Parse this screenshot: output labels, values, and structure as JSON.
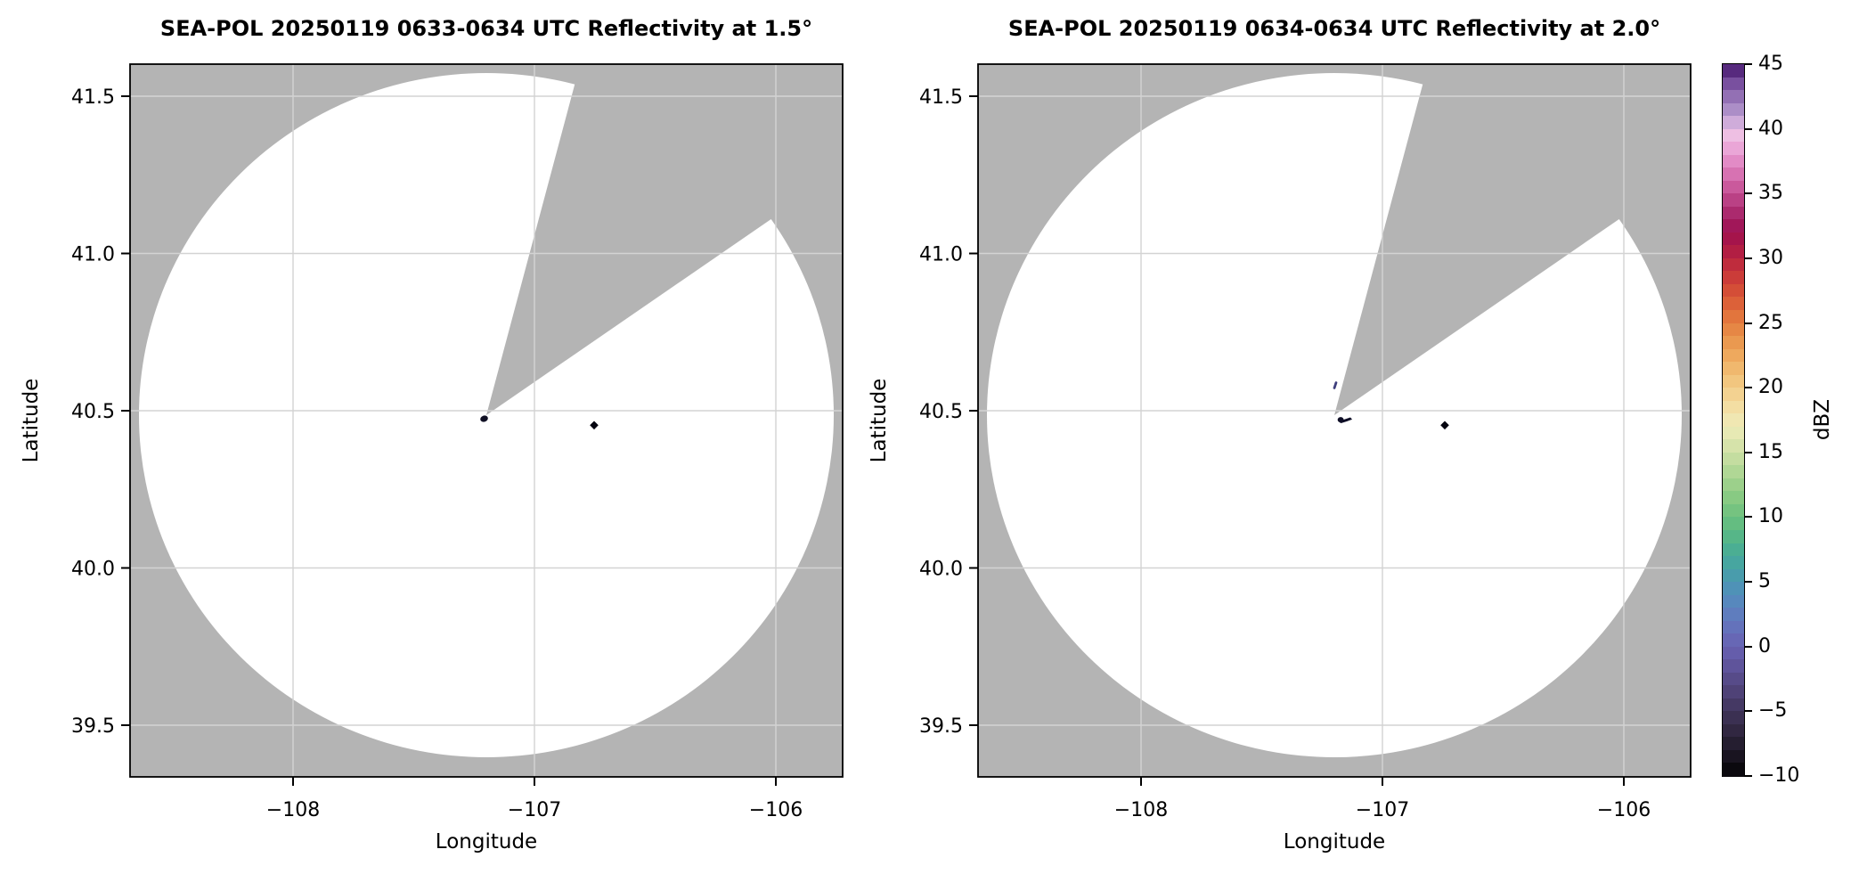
{
  "figure": {
    "background": "#ffffff",
    "description": "Two-panel SEA-POL radar PPI reflectivity figure with shared dBZ colorbar"
  },
  "chart_data": [
    {
      "type": "heatmap",
      "subtype": "radar-ppi-reflectivity",
      "title": "SEA-POL 20250119 0633-0634 UTC Reflectivity at 1.5°",
      "xlabel": "Longitude",
      "ylabel": "Latitude",
      "xlim": [
        -108.67,
        -105.72
      ],
      "ylim": [
        39.33,
        41.6
      ],
      "xtick_values": [
        -108,
        -107,
        -106
      ],
      "xtick_labels": [
        "−108",
        "−107",
        "−106"
      ],
      "ytick_values": [
        41.5,
        41.0,
        40.5,
        40.0,
        39.5
      ],
      "ytick_labels": [
        "41.5",
        "41.0",
        "40.5",
        "40.0",
        "39.5"
      ],
      "grid": true,
      "radar_center": {
        "lon": -107.21,
        "lat": 40.49
      },
      "scan_radius_deg_lat": 1.09,
      "missing_sector_azimuth_deg": [
        15,
        55.5
      ],
      "colors": {
        "no_coverage": "#b4b4b4",
        "coverage_no_echo": "#ffffff",
        "grid": "#d3d3d3"
      },
      "echoes": [
        {
          "lon": -107.21,
          "lat": 40.475,
          "approx_dbz": -8,
          "shape": "small-blob"
        },
        {
          "lon": -106.76,
          "lat": 40.45,
          "approx_dbz": -9,
          "shape": "small-diamond"
        }
      ]
    },
    {
      "type": "heatmap",
      "subtype": "radar-ppi-reflectivity",
      "title": "SEA-POL 20250119 0634-0634 UTC Reflectivity at 2.0°",
      "xlabel": "Longitude",
      "ylabel": "Latitude",
      "xlim": [
        -108.67,
        -105.72
      ],
      "ylim": [
        39.33,
        41.6
      ],
      "xtick_values": [
        -108,
        -107,
        -106
      ],
      "xtick_labels": [
        "−108",
        "−107",
        "−106"
      ],
      "ytick_values": [
        41.5,
        41.0,
        40.5,
        40.0,
        39.5
      ],
      "ytick_labels": [
        "41.5",
        "41.0",
        "40.5",
        "40.0",
        "39.5"
      ],
      "grid": true,
      "radar_center": {
        "lon": -107.21,
        "lat": 40.49
      },
      "scan_radius_deg_lat": 1.09,
      "missing_sector_azimuth_deg": [
        15,
        55.5
      ],
      "colors": {
        "no_coverage": "#b4b4b4",
        "coverage_no_echo": "#ffffff",
        "grid": "#d3d3d3"
      },
      "echoes": [
        {
          "lon": -107.2,
          "lat": 40.58,
          "approx_dbz": 1,
          "shape": "small-dash"
        },
        {
          "lon": -107.18,
          "lat": 40.47,
          "approx_dbz": -7,
          "shape": "small-squiggle"
        },
        {
          "lon": -106.76,
          "lat": 40.45,
          "approx_dbz": -9,
          "shape": "small-diamond"
        }
      ]
    }
  ],
  "colorbar": {
    "label": "dBZ",
    "min": -10,
    "max": 45,
    "tick_values": [
      45,
      40,
      35,
      30,
      25,
      20,
      15,
      10,
      5,
      0,
      -5,
      -10
    ],
    "tick_labels": [
      "45",
      "40",
      "35",
      "30",
      "25",
      "20",
      "15",
      "10",
      "5",
      "0",
      "−5",
      "−10"
    ],
    "stops": [
      {
        "v": -10,
        "c": "#030303"
      },
      {
        "v": -9,
        "c": "#120f18"
      },
      {
        "v": -8,
        "c": "#1f1928"
      },
      {
        "v": -7,
        "c": "#2b2238"
      },
      {
        "v": -6,
        "c": "#362b49"
      },
      {
        "v": -5,
        "c": "#40345b"
      },
      {
        "v": -4,
        "c": "#4a3d6d"
      },
      {
        "v": -3,
        "c": "#534680"
      },
      {
        "v": -2,
        "c": "#5b4f92"
      },
      {
        "v": -1,
        "c": "#6358a4"
      },
      {
        "v": 0,
        "c": "#6762b1"
      },
      {
        "v": 1,
        "c": "#666cb9"
      },
      {
        "v": 2,
        "c": "#6277bd"
      },
      {
        "v": 3,
        "c": "#5b82be"
      },
      {
        "v": 4,
        "c": "#538dbb"
      },
      {
        "v": 5,
        "c": "#4b97b2"
      },
      {
        "v": 6,
        "c": "#46a1a6"
      },
      {
        "v": 7,
        "c": "#47aa99"
      },
      {
        "v": 8,
        "c": "#4fb28c"
      },
      {
        "v": 9,
        "c": "#5cb983"
      },
      {
        "v": 10,
        "c": "#6cc07f"
      },
      {
        "v": 11,
        "c": "#7ec680"
      },
      {
        "v": 12,
        "c": "#92cd86"
      },
      {
        "v": 13,
        "c": "#a6d38f"
      },
      {
        "v": 14,
        "c": "#bada9a"
      },
      {
        "v": 15,
        "c": "#cde0a5"
      },
      {
        "v": 16,
        "c": "#dfe6af"
      },
      {
        "v": 17,
        "c": "#eeebb8"
      },
      {
        "v": 18,
        "c": "#f2e3ab"
      },
      {
        "v": 19,
        "c": "#f3d89a"
      },
      {
        "v": 20,
        "c": "#f2cc88"
      },
      {
        "v": 21,
        "c": "#f1bf76"
      },
      {
        "v": 22,
        "c": "#efb065"
      },
      {
        "v": 23,
        "c": "#eca156"
      },
      {
        "v": 24,
        "c": "#e89049"
      },
      {
        "v": 25,
        "c": "#e47e40"
      },
      {
        "v": 26,
        "c": "#df6b3a"
      },
      {
        "v": 27,
        "c": "#d85737"
      },
      {
        "v": 28,
        "c": "#d04437"
      },
      {
        "v": 29,
        "c": "#c5333a"
      },
      {
        "v": 30,
        "c": "#b9243f"
      },
      {
        "v": 31,
        "c": "#ab1746"
      },
      {
        "v": 32,
        "c": "#9f104f"
      },
      {
        "v": 33,
        "c": "#a31e63"
      },
      {
        "v": 34,
        "c": "#b23579"
      },
      {
        "v": 35,
        "c": "#c24d90"
      },
      {
        "v": 36,
        "c": "#d165a7"
      },
      {
        "v": 37,
        "c": "#dd7ebc"
      },
      {
        "v": 38,
        "c": "#e798cf"
      },
      {
        "v": 39,
        "c": "#edb3de"
      },
      {
        "v": 39.6,
        "c": "#eec2e4"
      },
      {
        "v": 40.3,
        "c": "#d8b3de"
      },
      {
        "v": 41,
        "c": "#b99cd0"
      },
      {
        "v": 42,
        "c": "#9f7fbe"
      },
      {
        "v": 43,
        "c": "#8660aa"
      },
      {
        "v": 44,
        "c": "#6b4094"
      },
      {
        "v": 45,
        "c": "#431368"
      }
    ]
  }
}
